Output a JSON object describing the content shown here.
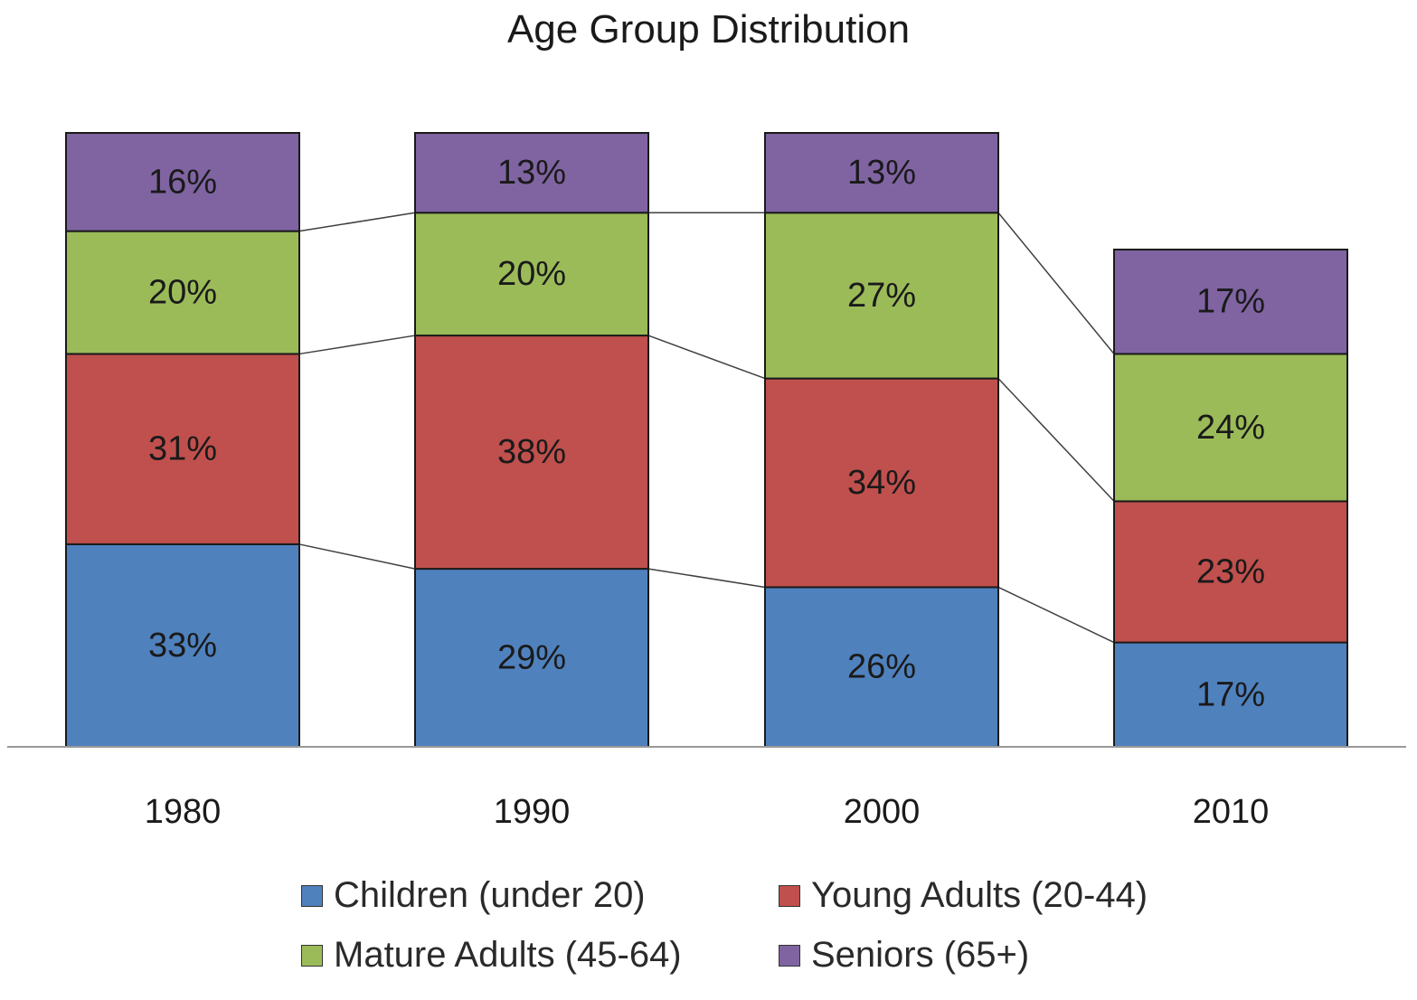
{
  "chart_data": {
    "type": "bar",
    "stacked": true,
    "title": "Age Group Distribution",
    "xlabel": "",
    "ylabel": "",
    "ylim": [
      0,
      100
    ],
    "grid": false,
    "legend_position": "bottom",
    "categories": [
      "1980",
      "1990",
      "2000",
      "2010"
    ],
    "series": [
      {
        "name": "Children (under 20)",
        "color": "#4f81bd",
        "values": [
          33,
          29,
          26,
          17
        ]
      },
      {
        "name": "Young Adults (20-44)",
        "color": "#c0504d",
        "values": [
          31,
          38,
          34,
          23
        ]
      },
      {
        "name": "Mature Adults (45-64)",
        "color": "#9bbb59",
        "values": [
          20,
          20,
          27,
          24
        ]
      },
      {
        "name": "Seniors (65+)",
        "color": "#8064a2",
        "values": [
          16,
          13,
          13,
          17
        ]
      }
    ],
    "value_suffix": "%",
    "series_lines": true
  }
}
